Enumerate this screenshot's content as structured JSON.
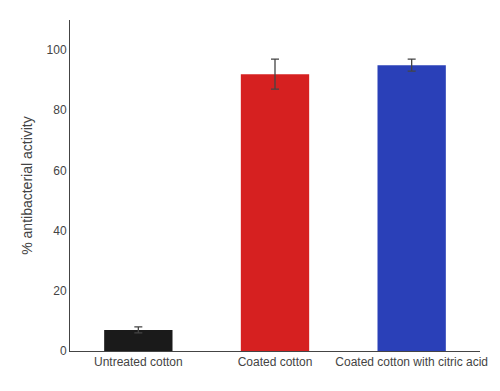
{
  "chart_data": {
    "type": "bar",
    "categories": [
      "Untreated cotton",
      "Coated cotton",
      "Coated cotton with citric acid"
    ],
    "values": [
      7.0,
      92.0,
      95.0
    ],
    "errors": [
      1.0,
      5.0,
      2.0
    ],
    "colors": [
      "#1a1a1a",
      "#d62020",
      "#2a40b8"
    ],
    "ylabel": "% antibacterial activity",
    "ylim": [
      0,
      110
    ],
    "yticks": [
      0,
      20,
      40,
      60,
      80,
      100
    ],
    "grid": false
  }
}
